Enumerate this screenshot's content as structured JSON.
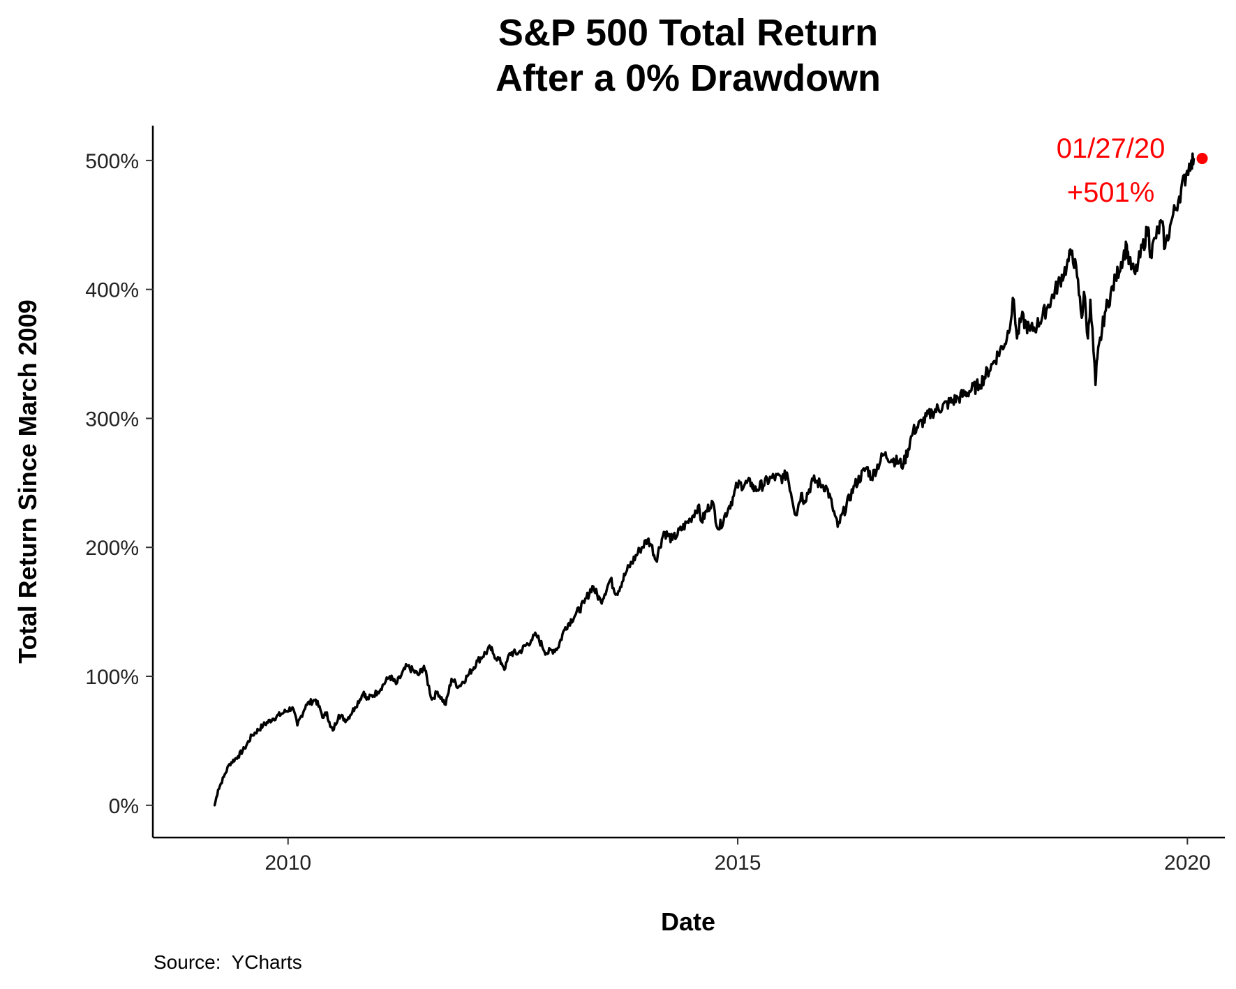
{
  "chart_data": {
    "type": "line",
    "title": [
      "S&P 500 Total Return",
      "After a 0% Drawdown"
    ],
    "xlabel": "Date",
    "ylabel": "Total Return Since March 2009",
    "source": "Source:  YCharts",
    "xlim": [
      "2008-07-01",
      "2020-06-01"
    ],
    "ylim": [
      -25,
      527
    ],
    "x_ticks": [
      {
        "label": "2010",
        "value": "2010-01-01"
      },
      {
        "label": "2015",
        "value": "2015-01-01"
      },
      {
        "label": "2020",
        "value": "2020-01-01"
      }
    ],
    "y_ticks": [
      {
        "label": "0%",
        "value": 0
      },
      {
        "label": "100%",
        "value": 100
      },
      {
        "label": "200%",
        "value": 200
      },
      {
        "label": "300%",
        "value": 300
      },
      {
        "label": "400%",
        "value": 400
      },
      {
        "label": "500%",
        "value": 500
      }
    ],
    "grid": false,
    "legend": "none",
    "line_color": "#000000",
    "annotation_color": "#ff0000",
    "annotation": {
      "date_label": "01/27/20",
      "value_label": "+501%",
      "x": "2020-01-27",
      "y": 501
    },
    "series": [
      {
        "x": [
          "2009-03-09",
          "2009-03-23",
          "2009-04-15",
          "2009-05-08",
          "2009-06-12",
          "2009-07-08",
          "2009-08-07",
          "2009-09-22",
          "2009-10-30",
          "2009-12-15",
          "2010-01-19",
          "2010-02-08",
          "2010-03-15",
          "2010-04-23",
          "2010-05-25",
          "2010-06-08",
          "2010-06-21",
          "2010-07-02",
          "2010-07-26",
          "2010-08-26",
          "2010-09-30",
          "2010-11-05",
          "2010-11-16",
          "2010-12-31",
          "2011-02-18",
          "2011-03-16",
          "2011-04-29",
          "2011-06-15",
          "2011-07-07",
          "2011-08-08",
          "2011-08-31",
          "2011-10-03",
          "2011-10-27",
          "2011-11-25",
          "2011-12-30",
          "2012-02-10",
          "2012-04-02",
          "2012-04-12",
          "2012-05-18",
          "2012-06-01",
          "2012-06-19",
          "2012-07-24",
          "2012-09-14",
          "2012-10-05",
          "2012-11-15",
          "2012-12-31",
          "2013-01-31",
          "2013-03-14",
          "2013-04-18",
          "2013-05-21",
          "2013-06-24",
          "2013-08-02",
          "2013-08-27",
          "2013-10-08",
          "2013-11-29",
          "2013-12-31",
          "2014-01-15",
          "2014-02-03",
          "2014-03-07",
          "2014-04-11",
          "2014-06-23",
          "2014-07-24",
          "2014-08-07",
          "2014-09-18",
          "2014-10-15",
          "2014-11-28",
          "2014-12-16",
          "2014-12-29",
          "2015-02-27",
          "2015-03-10",
          "2015-05-20",
          "2015-07-08",
          "2015-07-20",
          "2015-08-25",
          "2015-09-16",
          "2015-09-28",
          "2015-11-03",
          "2015-12-14",
          "2015-12-29",
          "2016-01-20",
          "2016-02-11",
          "2016-04-20",
          "2016-06-08",
          "2016-06-27",
          "2016-08-15",
          "2016-11-04",
          "2016-12-13",
          "2017-03-01",
          "2017-06-16",
          "2017-09-08",
          "2017-10-31",
          "2017-12-29",
          "2018-01-26",
          "2018-02-08",
          "2018-02-26",
          "2018-04-02",
          "2018-04-30",
          "2018-06-11",
          "2018-08-29",
          "2018-09-20",
          "2018-10-10",
          "2018-10-29",
          "2018-11-07",
          "2018-11-23",
          "2018-12-03",
          "2018-12-24",
          "2018-12-31",
          "2019-01-31",
          "2019-03-15",
          "2019-04-30",
          "2019-05-10",
          "2019-06-03",
          "2019-07-26",
          "2019-08-05",
          "2019-08-23",
          "2019-09-19",
          "2019-10-02",
          "2019-10-31",
          "2019-11-29",
          "2019-12-31",
          "2020-01-17",
          "2020-01-27"
        ],
        "y": [
          0,
          12,
          22,
          32,
          38,
          44,
          54,
          62,
          67,
          72,
          76,
          62,
          78,
          82,
          68,
          72,
          61,
          58,
          70,
          66,
          76,
          88,
          82,
          88,
          100,
          94,
          108,
          101,
          108,
          82,
          88,
          78,
          98,
          92,
          100,
          112,
          122,
          118,
          110,
          106,
          118,
          118,
          128,
          132,
          118,
          122,
          138,
          148,
          157,
          170,
          158,
          175,
          164,
          182,
          198,
          206,
          202,
          190,
          212,
          206,
          222,
          232,
          220,
          236,
          214,
          232,
          240,
          248,
          250,
          244,
          254,
          254,
          258,
          225,
          242,
          236,
          252,
          248,
          246,
          232,
          216,
          248,
          262,
          254,
          272,
          264,
          290,
          305,
          316,
          326,
          342,
          362,
          392,
          362,
          378,
          368,
          372,
          386,
          418,
          430,
          410,
          378,
          398,
          362,
          392,
          326,
          346,
          382,
          408,
          434,
          420,
          412,
          448,
          426,
          440,
          452,
          432,
          455,
          472,
          492,
          500,
          501
        ]
      }
    ]
  }
}
